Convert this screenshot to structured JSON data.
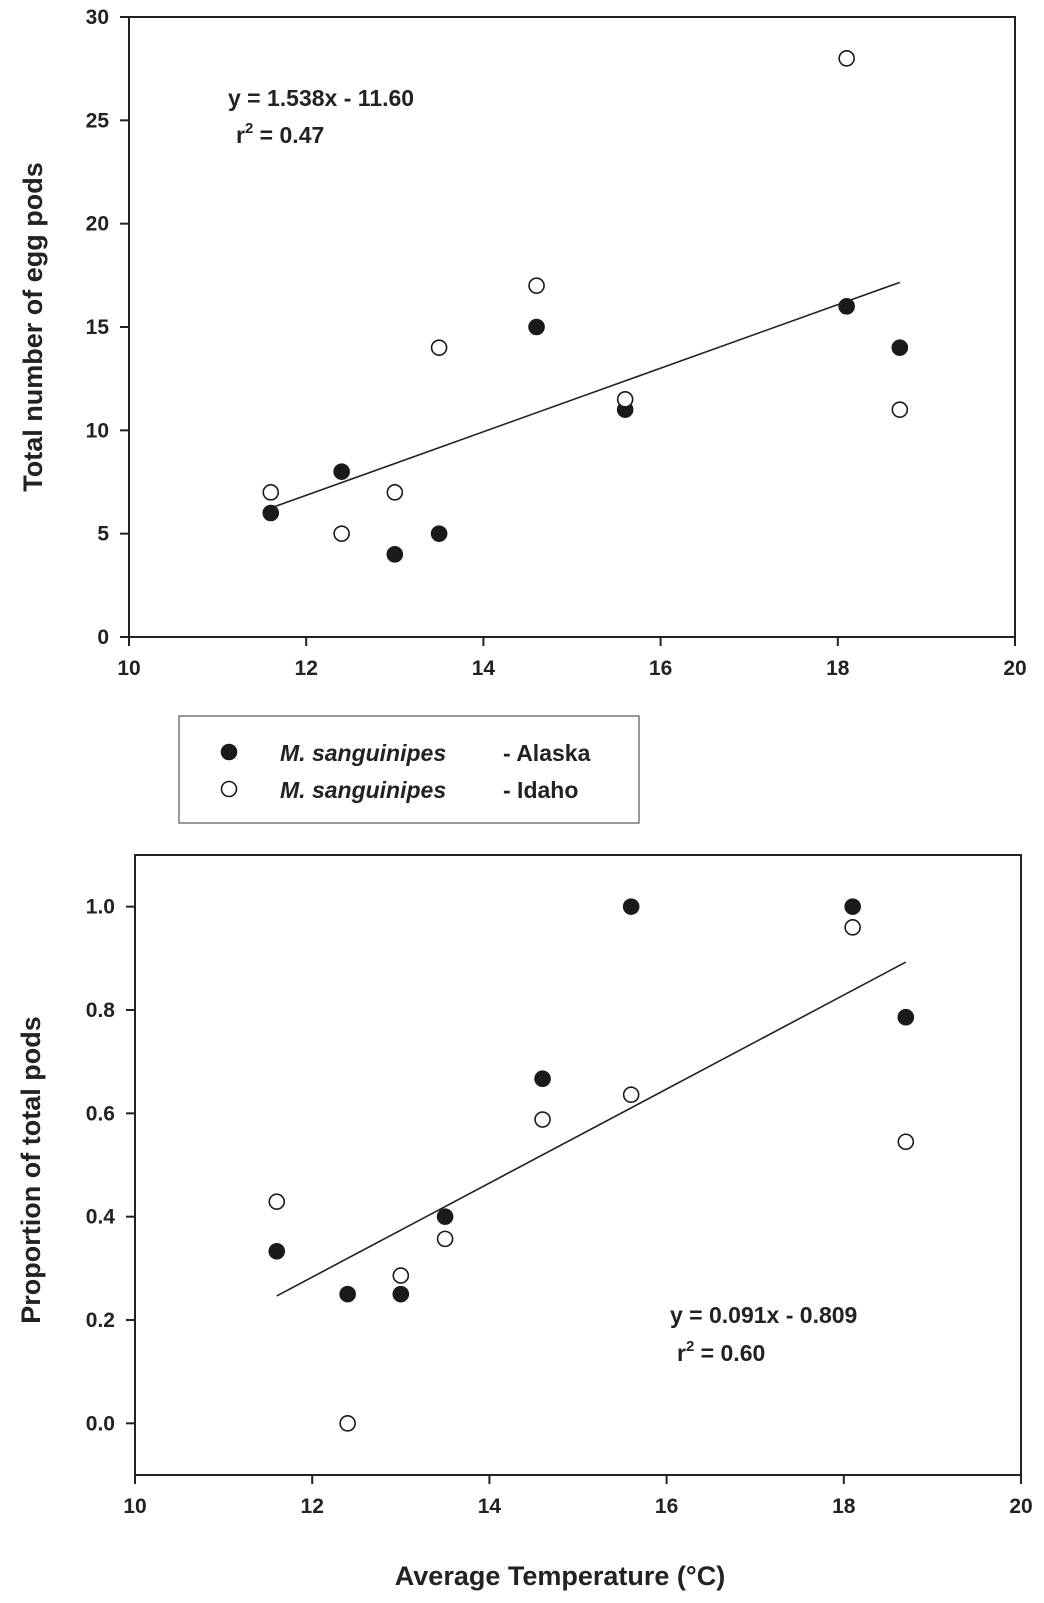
{
  "chart_data": [
    {
      "type": "scatter",
      "xlabel": "",
      "ylabel": "Total number of egg pods",
      "xlim": [
        10,
        20
      ],
      "ylim": [
        0,
        30
      ],
      "xticks": [
        "10",
        "12",
        "14",
        "16",
        "18",
        "20"
      ],
      "yticks": [
        "0",
        "5",
        "10",
        "15",
        "20",
        "25",
        "30"
      ],
      "series": [
        {
          "name": "Alaska",
          "x": [
            11.6,
            12.4,
            13.0,
            13.5,
            14.6,
            15.6,
            18.1,
            18.7
          ],
          "y": [
            6,
            8,
            4,
            5,
            15,
            11,
            16,
            14
          ]
        },
        {
          "name": "Idaho",
          "x": [
            11.6,
            12.4,
            13.0,
            13.5,
            14.6,
            15.6,
            18.1,
            18.7
          ],
          "y": [
            7,
            5,
            7,
            14,
            17,
            11.5,
            28,
            11
          ]
        }
      ],
      "fit": {
        "slope": 1.538,
        "intercept": -11.6,
        "x_range": [
          11.6,
          18.7
        ]
      },
      "annotation": {
        "equation": "y = 1.538x - 11.60",
        "r2_prefix": "r",
        "r2_sup": "2",
        "r2_value": " = 0.47"
      }
    },
    {
      "type": "scatter",
      "xlabel": "Average Temperature (°C)",
      "ylabel": "Proportion of total pods",
      "xlim": [
        10,
        20
      ],
      "ylim": [
        -0.1,
        1.1
      ],
      "xticks": [
        "10",
        "12",
        "14",
        "16",
        "18",
        "20"
      ],
      "yticks": [
        "0.0",
        "0.2",
        "0.4",
        "0.6",
        "0.8",
        "1.0"
      ],
      "series": [
        {
          "name": "Alaska",
          "x": [
            11.6,
            12.4,
            13.0,
            13.5,
            14.6,
            15.6,
            18.1,
            18.7
          ],
          "y": [
            0.333,
            0.25,
            0.25,
            0.4,
            0.667,
            1.0,
            1.0,
            0.786
          ]
        },
        {
          "name": "Idaho",
          "x": [
            11.6,
            12.4,
            13.0,
            13.5,
            14.6,
            15.6,
            18.1,
            18.7
          ],
          "y": [
            0.429,
            0.0,
            0.286,
            0.357,
            0.588,
            0.636,
            0.96,
            0.545
          ]
        }
      ],
      "fit": {
        "slope": 0.091,
        "intercept": -0.809,
        "x_range": [
          11.6,
          18.7
        ]
      },
      "annotation": {
        "equation": "y = 0.091x - 0.809",
        "r2_prefix": "r",
        "r2_sup": "2",
        "r2_value": " = 0.60"
      }
    }
  ],
  "legend": {
    "position": "between panels",
    "entries": [
      {
        "species": "M. sanguinipes",
        "suffix": "- Alaska",
        "marker": "filled-circle"
      },
      {
        "species": "M. sanguinipes",
        "suffix": "- Idaho",
        "marker": "open-circle"
      }
    ]
  },
  "colors": {
    "filled_marker": "#1a1a1a",
    "open_marker_stroke": "#1a1a1a",
    "open_marker_fill": "#ffffff",
    "axis": "#222222",
    "fit_line": "#222222"
  }
}
